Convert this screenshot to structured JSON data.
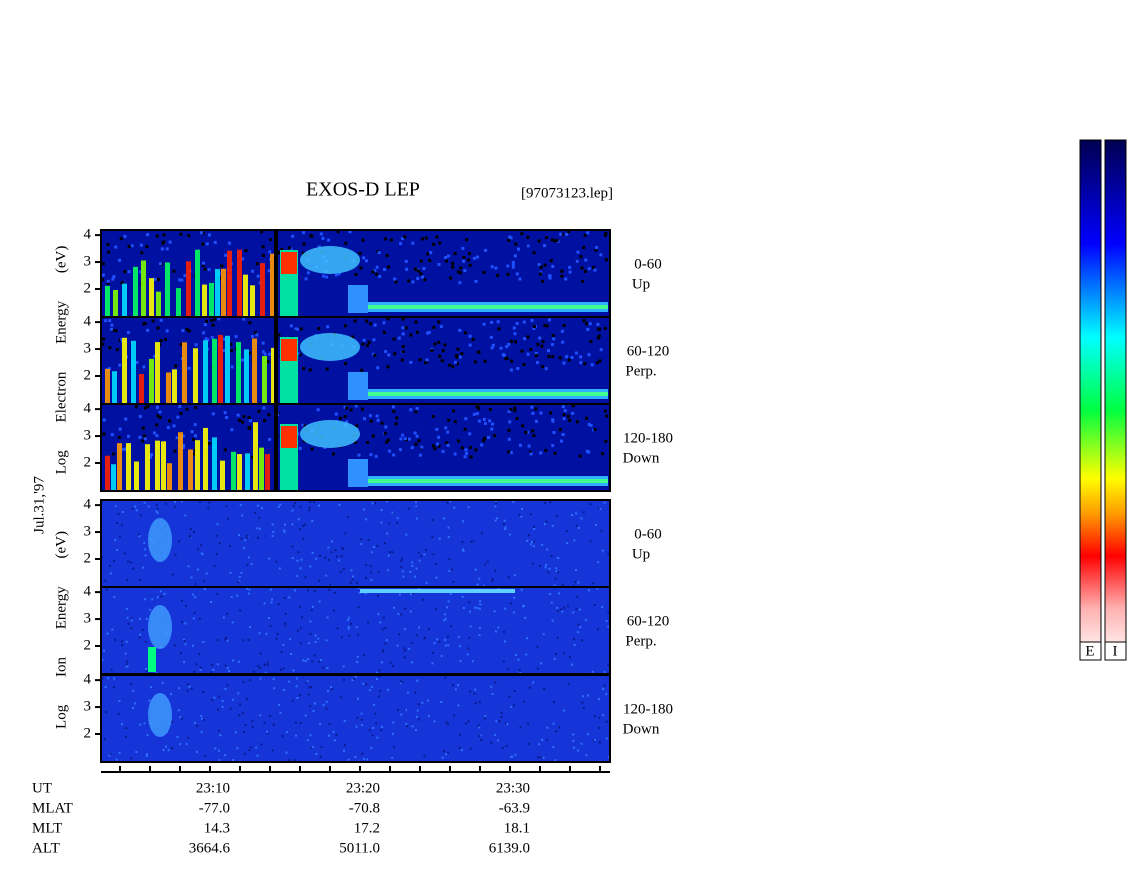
{
  "title": "EXOS-D LEP",
  "file": "[97073123.lep]",
  "date": "Jul.31,'97",
  "ylim": [
    0.96,
    4.19
  ],
  "panel_groups": [
    {
      "axis_label": "Log Electron Energy (eV)",
      "kind": "electron",
      "panels": [
        {
          "label": "0-60",
          "sublabel": "Up",
          "yticks": [
            2,
            3,
            4
          ]
        },
        {
          "label": "60-120",
          "sublabel": "Perp.",
          "yticks": [
            2,
            3,
            4
          ]
        },
        {
          "label": "120-180",
          "sublabel": "Down",
          "yticks": [
            2,
            3,
            4
          ]
        }
      ]
    },
    {
      "axis_label": "Log Ion Energy (eV)",
      "kind": "ion",
      "panels": [
        {
          "label": "0-60",
          "sublabel": "Up",
          "yticks": [
            2,
            3,
            4
          ]
        },
        {
          "label": "60-120",
          "sublabel": "Perp.",
          "yticks": [
            2,
            3,
            4
          ]
        },
        {
          "label": "120-180",
          "sublabel": "Down",
          "yticks": [
            2,
            3,
            4
          ]
        }
      ]
    }
  ],
  "ephemeris": {
    "labels": [
      "UT",
      "MLAT",
      "MLT",
      "ALT"
    ],
    "rows": [
      [
        "23:10",
        "23:20",
        "23:30"
      ],
      [
        "-77.0",
        "-70.8",
        "-63.9"
      ],
      [
        "14.3",
        "17.2",
        "18.1"
      ],
      [
        "3664.6",
        "5011.0",
        "6139.0"
      ]
    ]
  },
  "colorbar": {
    "labels": [
      "E",
      "I"
    ]
  }
}
